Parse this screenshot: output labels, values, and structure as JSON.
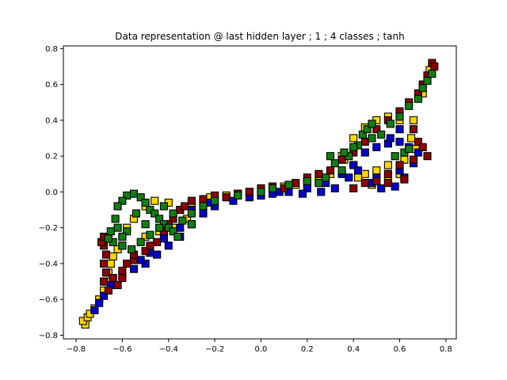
{
  "chart_data": {
    "type": "scatter",
    "title": "Data representation @ last hidden layer ; 1 ; 4 classes ; tanh",
    "xlabel": "",
    "ylabel": "",
    "xlim": [
      -0.855,
      0.845
    ],
    "ylim": [
      -0.82,
      0.815
    ],
    "xticks": [
      -0.8,
      -0.6,
      -0.4,
      -0.2,
      0.0,
      0.2,
      0.4,
      0.6,
      0.8
    ],
    "xtick_labels": [
      "−0.8",
      "−0.6",
      "−0.4",
      "−0.2",
      "0.0",
      "0.2",
      "0.4",
      "0.6",
      "0.8"
    ],
    "yticks": [
      -0.8,
      -0.6,
      -0.4,
      -0.2,
      0.0,
      0.2,
      0.4,
      0.6,
      0.8
    ],
    "ytick_labels": [
      "−0.8",
      "−0.6",
      "−0.4",
      "−0.2",
      "0.0",
      "0.2",
      "0.4",
      "0.6",
      "0.8"
    ],
    "grid": false,
    "marker": "square",
    "series": [
      {
        "color": "#ffd700",
        "points": [
          [
            -0.76,
            -0.74
          ],
          [
            -0.77,
            -0.72
          ],
          [
            -0.75,
            -0.7
          ],
          [
            -0.74,
            -0.68
          ],
          [
            -0.72,
            -0.65
          ],
          [
            -0.7,
            -0.6
          ],
          [
            -0.68,
            -0.55
          ],
          [
            -0.67,
            -0.5
          ],
          [
            -0.66,
            -0.45
          ],
          [
            -0.65,
            -0.4
          ],
          [
            -0.62,
            -0.32
          ],
          [
            -0.6,
            -0.25
          ],
          [
            -0.58,
            -0.2
          ],
          [
            -0.55,
            -0.15
          ],
          [
            -0.5,
            -0.08
          ],
          [
            -0.46,
            -0.05
          ],
          [
            -0.4,
            -0.06
          ],
          [
            -0.35,
            -0.1
          ],
          [
            -0.32,
            -0.15
          ],
          [
            -0.38,
            -0.2
          ],
          [
            -0.44,
            -0.22
          ],
          [
            -0.5,
            -0.25
          ],
          [
            -0.3,
            -0.08
          ],
          [
            -0.22,
            -0.03
          ],
          [
            -0.15,
            -0.02
          ],
          [
            -0.05,
            0.0
          ],
          [
            0.05,
            0.02
          ],
          [
            0.15,
            0.04
          ],
          [
            0.25,
            0.06
          ],
          [
            0.3,
            0.1
          ],
          [
            0.35,
            0.2
          ],
          [
            0.4,
            0.3
          ],
          [
            0.45,
            0.36
          ],
          [
            0.5,
            0.4
          ],
          [
            0.55,
            0.42
          ],
          [
            0.6,
            0.4
          ],
          [
            0.65,
            0.3
          ],
          [
            0.67,
            0.24
          ],
          [
            0.62,
            0.18
          ],
          [
            0.55,
            0.15
          ],
          [
            0.5,
            0.12
          ],
          [
            0.45,
            0.1
          ],
          [
            0.4,
            0.15
          ],
          [
            0.36,
            0.18
          ],
          [
            0.42,
            0.08
          ],
          [
            0.48,
            0.04
          ],
          [
            0.55,
            0.06
          ],
          [
            0.6,
            0.1
          ],
          [
            0.66,
            0.4
          ],
          [
            0.7,
            0.55
          ],
          [
            0.73,
            0.68
          ],
          [
            0.1,
            0.03
          ],
          [
            0.2,
            0.05
          ],
          [
            -0.1,
            -0.01
          ],
          [
            -0.25,
            -0.05
          ],
          [
            -0.6,
            -0.3
          ],
          [
            -0.64,
            -0.36
          ]
        ]
      },
      {
        "color": "#0000cc",
        "points": [
          [
            -0.72,
            -0.66
          ],
          [
            -0.7,
            -0.62
          ],
          [
            -0.68,
            -0.58
          ],
          [
            -0.65,
            -0.52
          ],
          [
            -0.6,
            -0.47
          ],
          [
            -0.55,
            -0.43
          ],
          [
            -0.5,
            -0.4
          ],
          [
            -0.45,
            -0.35
          ],
          [
            -0.4,
            -0.3
          ],
          [
            -0.35,
            -0.25
          ],
          [
            -0.3,
            -0.18
          ],
          [
            -0.25,
            -0.12
          ],
          [
            -0.2,
            -0.08
          ],
          [
            -0.12,
            -0.05
          ],
          [
            -0.05,
            -0.03
          ],
          [
            0.05,
            -0.01
          ],
          [
            0.12,
            0.0
          ],
          [
            0.2,
            0.02
          ],
          [
            0.28,
            0.05
          ],
          [
            0.35,
            0.1
          ],
          [
            0.4,
            0.15
          ],
          [
            0.45,
            0.22
          ],
          [
            0.5,
            0.25
          ],
          [
            0.55,
            0.27
          ],
          [
            0.6,
            0.28
          ],
          [
            0.64,
            0.25
          ],
          [
            0.68,
            0.22
          ],
          [
            0.66,
            0.16
          ],
          [
            0.6,
            0.12
          ],
          [
            0.55,
            0.1
          ],
          [
            0.5,
            0.08
          ],
          [
            0.48,
            0.05
          ],
          [
            0.52,
            0.02
          ],
          [
            0.58,
            0.03
          ],
          [
            0.62,
            0.08
          ],
          [
            0.56,
            0.3
          ],
          [
            0.6,
            0.35
          ],
          [
            0.42,
            0.12
          ],
          [
            0.38,
            0.08
          ],
          [
            0.32,
            0.02
          ],
          [
            0.26,
            0.0
          ],
          [
            0.18,
            -0.01
          ],
          [
            -0.35,
            -0.2
          ],
          [
            -0.42,
            -0.26
          ],
          [
            -0.48,
            -0.34
          ],
          [
            -0.52,
            -0.38
          ],
          [
            -0.3,
            -0.1
          ],
          [
            -0.22,
            -0.06
          ],
          [
            0.0,
            -0.02
          ],
          [
            0.08,
            0.0
          ]
        ]
      },
      {
        "color": "#8b0000",
        "points": [
          [
            -0.68,
            -0.3
          ],
          [
            -0.69,
            -0.28
          ],
          [
            -0.68,
            -0.25
          ],
          [
            -0.67,
            -0.35
          ],
          [
            -0.68,
            -0.4
          ],
          [
            -0.67,
            -0.45
          ],
          [
            -0.68,
            -0.5
          ],
          [
            -0.66,
            -0.55
          ],
          [
            -0.64,
            -0.48
          ],
          [
            -0.6,
            -0.44
          ],
          [
            -0.55,
            -0.38
          ],
          [
            -0.5,
            -0.33
          ],
          [
            -0.45,
            -0.28
          ],
          [
            -0.42,
            -0.22
          ],
          [
            -0.38,
            -0.15
          ],
          [
            -0.35,
            -0.1
          ],
          [
            -0.3,
            -0.05
          ],
          [
            -0.25,
            -0.04
          ],
          [
            -0.2,
            -0.02
          ],
          [
            -0.15,
            -0.03
          ],
          [
            -0.1,
            -0.01
          ],
          [
            -0.05,
            0.0
          ],
          [
            0.0,
            0.02
          ],
          [
            0.05,
            0.03
          ],
          [
            0.1,
            0.02
          ],
          [
            0.15,
            0.05
          ],
          [
            0.2,
            0.08
          ],
          [
            0.25,
            0.1
          ],
          [
            0.3,
            0.12
          ],
          [
            0.35,
            0.18
          ],
          [
            0.4,
            0.22
          ],
          [
            0.45,
            0.28
          ],
          [
            0.5,
            0.35
          ],
          [
            0.55,
            0.4
          ],
          [
            0.6,
            0.45
          ],
          [
            0.64,
            0.5
          ],
          [
            0.68,
            0.55
          ],
          [
            0.7,
            0.6
          ],
          [
            0.72,
            0.65
          ],
          [
            0.74,
            0.72
          ],
          [
            0.75,
            0.7
          ],
          [
            0.66,
            0.35
          ],
          [
            0.68,
            0.28
          ],
          [
            0.7,
            0.25
          ],
          [
            0.72,
            0.2
          ],
          [
            0.66,
            0.18
          ],
          [
            0.6,
            0.15
          ],
          [
            0.55,
            0.1
          ],
          [
            0.5,
            0.06
          ],
          [
            0.55,
            0.05
          ],
          [
            0.62,
            0.07
          ],
          [
            0.45,
            0.05
          ],
          [
            0.4,
            0.02
          ],
          [
            -0.4,
            -0.18
          ],
          [
            -0.48,
            -0.3
          ],
          [
            -0.55,
            -0.35
          ],
          [
            -0.58,
            -0.4
          ],
          [
            -0.33,
            -0.08
          ],
          [
            -0.6,
            -0.48
          ],
          [
            -0.62,
            -0.52
          ]
        ]
      },
      {
        "color": "#137d13",
        "points": [
          [
            -0.58,
            -0.02
          ],
          [
            -0.6,
            -0.05
          ],
          [
            -0.62,
            -0.08
          ],
          [
            -0.55,
            -0.01
          ],
          [
            -0.52,
            -0.03
          ],
          [
            -0.5,
            -0.06
          ],
          [
            -0.48,
            -0.1
          ],
          [
            -0.46,
            -0.12
          ],
          [
            -0.44,
            -0.15
          ],
          [
            -0.42,
            -0.18
          ],
          [
            -0.4,
            -0.2
          ],
          [
            -0.38,
            -0.22
          ],
          [
            -0.36,
            -0.25
          ],
          [
            -0.58,
            -0.22
          ],
          [
            -0.6,
            -0.25
          ],
          [
            -0.62,
            -0.2
          ],
          [
            -0.64,
            -0.28
          ],
          [
            -0.6,
            -0.3
          ],
          [
            -0.56,
            -0.32
          ],
          [
            -0.52,
            -0.28
          ],
          [
            -0.48,
            -0.24
          ],
          [
            -0.44,
            -0.2
          ],
          [
            -0.5,
            -0.18
          ],
          [
            -0.54,
            -0.12
          ],
          [
            -0.42,
            -0.08
          ],
          [
            -0.38,
            -0.12
          ],
          [
            -0.34,
            -0.16
          ],
          [
            -0.3,
            -0.12
          ],
          [
            -0.25,
            -0.08
          ],
          [
            -0.2,
            -0.05
          ],
          [
            -0.1,
            -0.02
          ],
          [
            0.0,
            0.0
          ],
          [
            0.05,
            0.02
          ],
          [
            0.12,
            0.04
          ],
          [
            0.2,
            0.06
          ],
          [
            0.28,
            0.08
          ],
          [
            0.35,
            0.12
          ],
          [
            0.38,
            0.2
          ],
          [
            0.42,
            0.26
          ],
          [
            0.48,
            0.3
          ],
          [
            0.52,
            0.32
          ],
          [
            0.56,
            0.38
          ],
          [
            0.6,
            0.42
          ],
          [
            0.64,
            0.48
          ],
          [
            0.68,
            0.52
          ],
          [
            0.7,
            0.58
          ],
          [
            0.72,
            0.62
          ],
          [
            0.74,
            0.66
          ],
          [
            0.4,
            0.25
          ],
          [
            0.36,
            0.22
          ],
          [
            0.32,
            0.16
          ],
          [
            0.3,
            0.2
          ],
          [
            0.44,
            0.32
          ],
          [
            0.46,
            0.35
          ],
          [
            0.48,
            0.38
          ],
          [
            0.58,
            0.2
          ],
          [
            0.62,
            0.22
          ],
          [
            0.64,
            0.24
          ],
          [
            0.25,
            0.05
          ],
          [
            -0.65,
            -0.22
          ],
          [
            -0.66,
            -0.26
          ],
          [
            -0.63,
            -0.15
          ],
          [
            -0.3,
            -0.18
          ]
        ]
      }
    ]
  }
}
